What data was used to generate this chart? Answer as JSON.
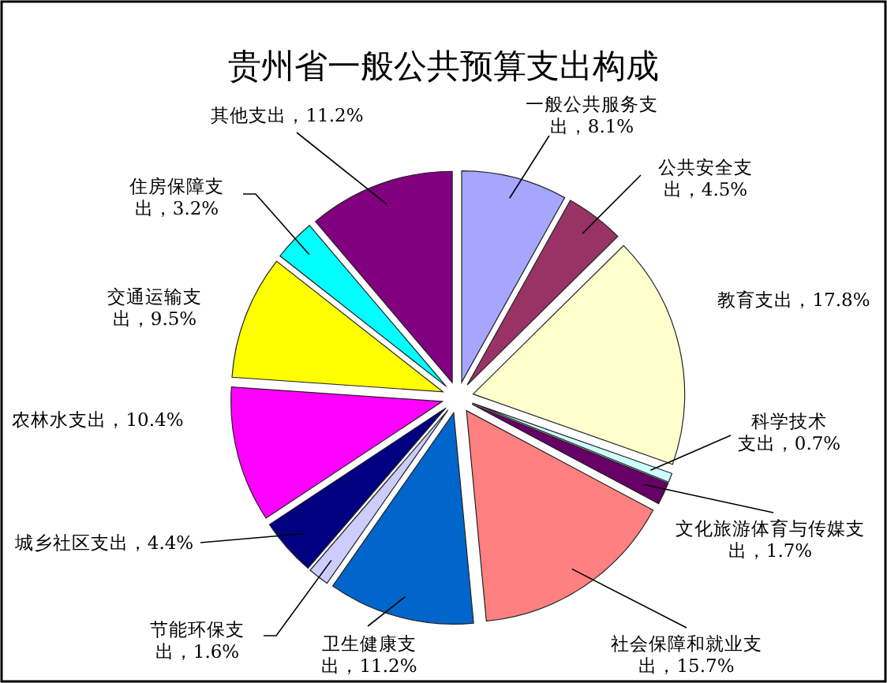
{
  "chart_data": {
    "type": "pie",
    "title": "贵州省一般公共预算支出构成",
    "categories": [
      "一般公共服务支出",
      "公共安全支出",
      "教育支出",
      "科学技术支出",
      "文化旅游体育与传媒支出",
      "社会保障和就业支出",
      "卫生健康支出",
      "节能环保支出",
      "城乡社区支出",
      "农林水支出",
      "交通运输支出",
      "住房保障支出",
      "其他支出"
    ],
    "values": [
      8.1,
      4.5,
      17.8,
      0.7,
      1.7,
      15.7,
      11.2,
      1.6,
      4.4,
      10.4,
      9.5,
      3.2,
      11.2
    ],
    "value_labels": [
      "8.1%",
      "4.5%",
      "17.8%",
      "0.7%",
      "1.7%",
      "15.7%",
      "11.2%",
      "1.6%",
      "4.4%",
      "10.4%",
      "9.5%",
      "3.2%",
      "11.2%"
    ],
    "colors": [
      "#a6a6ff",
      "#993366",
      "#ffffcc",
      "#ccffff",
      "#660066",
      "#ff8080",
      "#0066cc",
      "#ccccff",
      "#000080",
      "#ff00ff",
      "#ffff00",
      "#00ffff",
      "#800080"
    ]
  }
}
